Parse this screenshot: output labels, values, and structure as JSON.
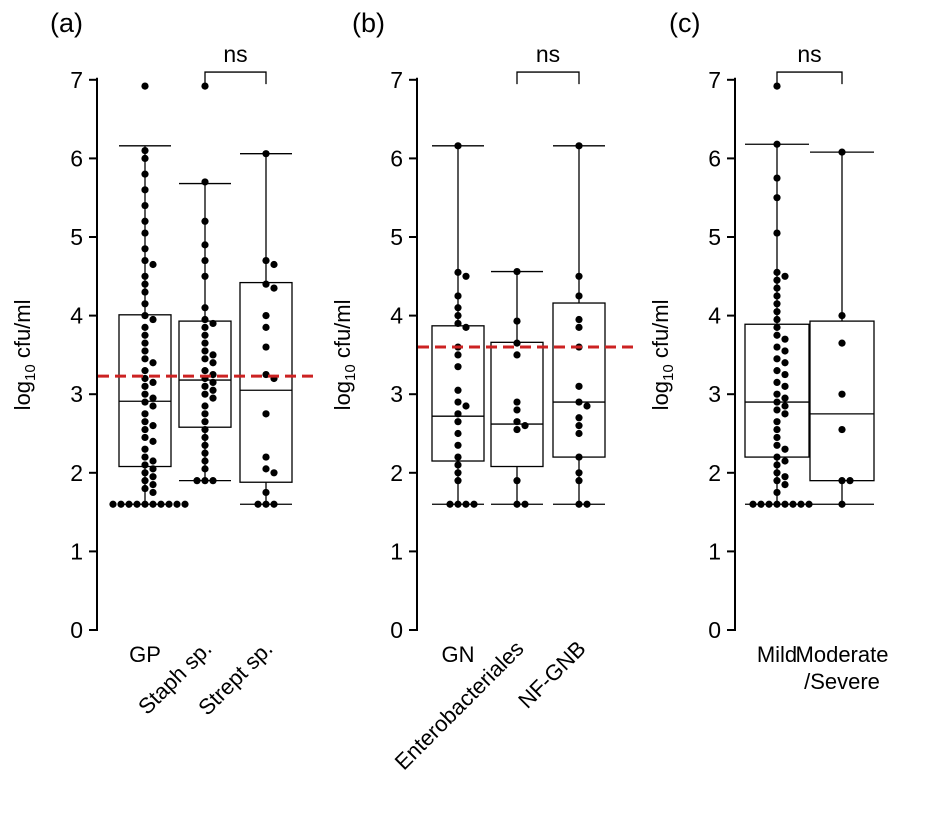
{
  "figure": {
    "colors": {
      "axis": "#000000",
      "box": "#000000",
      "point": "#000000",
      "threshold": "#cc2222",
      "background": "#ffffff"
    }
  },
  "chart_data": [
    {
      "type": "box",
      "panel_label": "(a)",
      "ylabel_main": "log",
      "ylabel_sub": "10",
      "ylabel_rest": " cfu/ml",
      "ylim": [
        0,
        7
      ],
      "yticks": [
        0,
        1,
        2,
        3,
        4,
        5,
        6,
        7
      ],
      "categories": [
        "GP",
        "Staph sp.",
        "Strept sp."
      ],
      "category_label_rotation": [
        0,
        -45,
        -45
      ],
      "reference_line": 3.23,
      "significance": {
        "label": "ns",
        "from": 1,
        "to": 2,
        "y": 7.2
      },
      "series": [
        {
          "name": "GP",
          "box": {
            "q1": 2.08,
            "median": 2.91,
            "q3": 4.01,
            "whisker_low": 1.6,
            "whisker_high": 6.16
          },
          "points": [
            6.92,
            6.1,
            6.0,
            5.8,
            5.6,
            5.4,
            5.2,
            5.05,
            4.85,
            4.7,
            4.65,
            4.5,
            4.4,
            4.3,
            4.15,
            4.0,
            3.95,
            3.85,
            3.75,
            3.65,
            3.55,
            3.45,
            3.4,
            3.3,
            3.2,
            3.15,
            3.1,
            3.0,
            2.95,
            2.9,
            2.85,
            2.75,
            2.65,
            2.6,
            2.55,
            2.45,
            2.4,
            2.3,
            2.2,
            2.15,
            2.1,
            2.05,
            2.0,
            1.95,
            1.9,
            1.85,
            1.8,
            1.75,
            1.6,
            1.6,
            1.6,
            1.6,
            1.6,
            1.6,
            1.6,
            1.6,
            1.6,
            1.6
          ]
        },
        {
          "name": "Staph sp.",
          "box": {
            "q1": 2.58,
            "median": 3.18,
            "q3": 3.93,
            "whisker_low": 1.9,
            "whisker_high": 5.68
          },
          "points": [
            6.92,
            5.7,
            5.2,
            4.9,
            4.7,
            4.5,
            4.1,
            3.95,
            3.9,
            3.85,
            3.75,
            3.65,
            3.55,
            3.5,
            3.45,
            3.4,
            3.3,
            3.25,
            3.2,
            3.15,
            3.1,
            3.05,
            3.0,
            2.95,
            2.85,
            2.75,
            2.65,
            2.55,
            2.45,
            2.35,
            2.25,
            2.15,
            2.05,
            1.9,
            1.9,
            1.9
          ]
        },
        {
          "name": "Strept sp.",
          "box": {
            "q1": 1.88,
            "median": 3.05,
            "q3": 4.42,
            "whisker_low": 1.6,
            "whisker_high": 6.06
          },
          "points": [
            6.06,
            4.7,
            4.65,
            4.4,
            4.35,
            4.0,
            3.85,
            3.6,
            3.25,
            3.2,
            2.75,
            2.2,
            2.05,
            2.0,
            1.75,
            1.6,
            1.6,
            1.6
          ]
        }
      ]
    },
    {
      "type": "box",
      "panel_label": "(b)",
      "ylabel_main": "log",
      "ylabel_sub": "10",
      "ylabel_rest": " cfu/ml",
      "ylim": [
        0,
        7
      ],
      "yticks": [
        0,
        1,
        2,
        3,
        4,
        5,
        6,
        7
      ],
      "categories": [
        "GN",
        "Enterobacteriales",
        "NF-GNB"
      ],
      "category_label_rotation": [
        0,
        -45,
        -45
      ],
      "reference_line": 3.6,
      "significance": {
        "label": "ns",
        "from": 1,
        "to": 2,
        "y": 7.2
      },
      "series": [
        {
          "name": "GN",
          "box": {
            "q1": 2.15,
            "median": 2.72,
            "q3": 3.87,
            "whisker_low": 1.6,
            "whisker_high": 6.16
          },
          "points": [
            6.16,
            4.55,
            4.5,
            4.25,
            4.1,
            4.0,
            3.9,
            3.85,
            3.6,
            3.5,
            3.35,
            3.05,
            2.9,
            2.85,
            2.75,
            2.65,
            2.5,
            2.35,
            2.2,
            2.1,
            2.0,
            1.9,
            1.6,
            1.6,
            1.6,
            1.6
          ]
        },
        {
          "name": "Enterobacteriales",
          "box": {
            "q1": 2.08,
            "median": 2.62,
            "q3": 3.66,
            "whisker_low": 1.6,
            "whisker_high": 4.56
          },
          "points": [
            4.56,
            3.93,
            3.65,
            3.5,
            2.9,
            2.8,
            2.65,
            2.6,
            2.55,
            1.9,
            1.6,
            1.6
          ]
        },
        {
          "name": "NF-GNB",
          "box": {
            "q1": 2.2,
            "median": 2.9,
            "q3": 4.16,
            "whisker_low": 1.6,
            "whisker_high": 6.16
          },
          "points": [
            6.16,
            4.5,
            4.25,
            3.95,
            3.85,
            3.6,
            3.1,
            2.9,
            2.85,
            2.7,
            2.6,
            2.5,
            2.2,
            2.0,
            1.9,
            1.6,
            1.6
          ]
        }
      ]
    },
    {
      "type": "box",
      "panel_label": "(c)",
      "ylabel_main": "log",
      "ylabel_sub": "10",
      "ylabel_rest": " cfu/ml",
      "ylim": [
        0,
        7
      ],
      "yticks": [
        0,
        1,
        2,
        3,
        4,
        5,
        6,
        7
      ],
      "categories": [
        "Mild",
        "Moderate\n/Severe"
      ],
      "category_label_rotation": [
        0,
        0
      ],
      "reference_line": null,
      "significance": {
        "label": "ns",
        "from": 0,
        "to": 1,
        "y": 7.2
      },
      "series": [
        {
          "name": "Mild",
          "box": {
            "q1": 2.2,
            "median": 2.9,
            "q3": 3.89,
            "whisker_low": 1.6,
            "whisker_high": 6.18
          },
          "points": [
            6.92,
            6.18,
            5.75,
            5.5,
            5.05,
            4.55,
            4.5,
            4.45,
            4.35,
            4.25,
            4.15,
            4.05,
            3.95,
            3.85,
            3.75,
            3.7,
            3.6,
            3.55,
            3.45,
            3.4,
            3.3,
            3.25,
            3.15,
            3.1,
            3.0,
            2.95,
            2.9,
            2.85,
            2.8,
            2.75,
            2.65,
            2.55,
            2.45,
            2.35,
            2.3,
            2.2,
            2.15,
            2.1,
            2.0,
            1.95,
            1.9,
            1.85,
            1.75,
            1.6,
            1.6,
            1.6,
            1.6,
            1.6,
            1.6,
            1.6,
            1.6
          ]
        },
        {
          "name": "Moderate\n/Severe",
          "box": {
            "q1": 1.9,
            "median": 2.75,
            "q3": 3.93,
            "whisker_low": 1.6,
            "whisker_high": 6.08
          },
          "points": [
            6.08,
            4.0,
            3.65,
            3.0,
            2.55,
            1.9,
            1.9,
            1.6
          ]
        }
      ]
    }
  ]
}
